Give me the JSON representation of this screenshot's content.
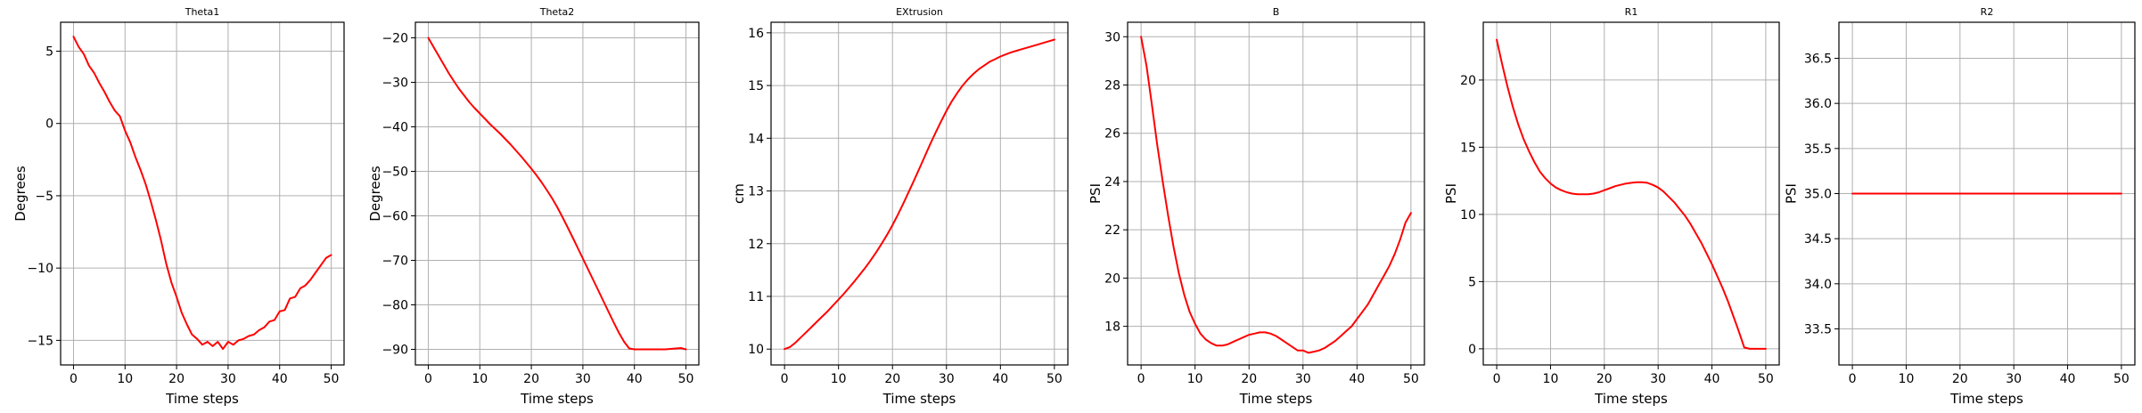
{
  "chart_data": [
    {
      "type": "line",
      "title": "Theta1",
      "xlabel": "Time steps",
      "ylabel": "Degrees",
      "xlim": [
        -2.5,
        52.5
      ],
      "ylim": [
        -16.7,
        7.0
      ],
      "xticks": [
        0,
        10,
        20,
        30,
        40,
        50
      ],
      "xtick_labels": [
        "0",
        "10",
        "20",
        "30",
        "40",
        "50"
      ],
      "yticks": [
        5,
        0,
        -5,
        -10,
        -15
      ],
      "ytick_labels": [
        "5",
        "0",
        "−5",
        "−10",
        "−15"
      ],
      "grid": true,
      "color": "#ff0000",
      "x": [
        0,
        1,
        2,
        3,
        4,
        5,
        6,
        7,
        8,
        9,
        10,
        11,
        12,
        13,
        14,
        15,
        16,
        17,
        18,
        19,
        20,
        21,
        22,
        23,
        24,
        25,
        26,
        27,
        28,
        29,
        30,
        31,
        32,
        33,
        34,
        35,
        36,
        37,
        38,
        39,
        40,
        41,
        42,
        43,
        44,
        45,
        46,
        47,
        48,
        49,
        50
      ],
      "y": [
        6.0,
        5.3,
        4.8,
        4.0,
        3.5,
        2.8,
        2.2,
        1.5,
        0.9,
        0.5,
        -0.5,
        -1.3,
        -2.3,
        -3.2,
        -4.2,
        -5.4,
        -6.7,
        -8.1,
        -9.7,
        -11.0,
        -12.0,
        -13.1,
        -13.9,
        -14.6,
        -14.9,
        -15.3,
        -15.1,
        -15.4,
        -15.1,
        -15.6,
        -15.1,
        -15.3,
        -15.0,
        -14.9,
        -14.7,
        -14.6,
        -14.3,
        -14.1,
        -13.7,
        -13.6,
        -13.0,
        -12.9,
        -12.1,
        -12.0,
        -11.4,
        -11.2,
        -10.8,
        -10.3,
        -9.8,
        -9.3,
        -9.1
      ]
    },
    {
      "type": "line",
      "title": "Theta2",
      "xlabel": "Time steps",
      "ylabel": "Degrees",
      "xlim": [
        -2.5,
        52.5
      ],
      "ylim": [
        -93.5,
        -16.5
      ],
      "xticks": [
        0,
        10,
        20,
        30,
        40,
        50
      ],
      "xtick_labels": [
        "0",
        "10",
        "20",
        "30",
        "40",
        "50"
      ],
      "yticks": [
        -20,
        -30,
        -40,
        -50,
        -60,
        -70,
        -80,
        -90
      ],
      "ytick_labels": [
        "−20",
        "−30",
        "−40",
        "−50",
        "−60",
        "−70",
        "−80",
        "−90"
      ],
      "grid": true,
      "color": "#ff0000",
      "x": [
        0,
        1,
        2,
        3,
        4,
        5,
        6,
        7,
        8,
        9,
        10,
        11,
        12,
        13,
        14,
        15,
        16,
        17,
        18,
        19,
        20,
        21,
        22,
        23,
        24,
        25,
        26,
        27,
        28,
        29,
        30,
        31,
        32,
        33,
        34,
        35,
        36,
        37,
        38,
        39,
        40,
        41,
        42,
        43,
        44,
        45,
        46,
        47,
        48,
        49,
        50
      ],
      "y": [
        -20.0,
        -22.0,
        -24.0,
        -26.0,
        -28.0,
        -29.8,
        -31.5,
        -33.0,
        -34.5,
        -35.8,
        -37.0,
        -38.2,
        -39.4,
        -40.5,
        -41.6,
        -42.8,
        -44.0,
        -45.3,
        -46.6,
        -48.0,
        -49.4,
        -50.9,
        -52.5,
        -54.2,
        -56.0,
        -58.0,
        -60.2,
        -62.5,
        -64.8,
        -67.2,
        -69.6,
        -72.0,
        -74.4,
        -76.8,
        -79.2,
        -81.6,
        -84.0,
        -86.3,
        -88.3,
        -89.8,
        -90.0,
        -90.0,
        -90.0,
        -90.0,
        -90.0,
        -90.0,
        -90.0,
        -89.9,
        -89.8,
        -89.7,
        -90.0
      ]
    },
    {
      "type": "line",
      "title": "EXtrusion",
      "xlabel": "Time steps",
      "ylabel": "cm",
      "xlim": [
        -2.5,
        52.5
      ],
      "ylim": [
        9.7,
        16.2
      ],
      "xticks": [
        0,
        10,
        20,
        30,
        40,
        50
      ],
      "xtick_labels": [
        "0",
        "10",
        "20",
        "30",
        "40",
        "50"
      ],
      "yticks": [
        10,
        11,
        12,
        13,
        14,
        15,
        16
      ],
      "ytick_labels": [
        "10",
        "11",
        "12",
        "13",
        "14",
        "15",
        "16"
      ],
      "grid": true,
      "color": "#ff0000",
      "x": [
        0,
        1,
        2,
        3,
        4,
        5,
        6,
        7,
        8,
        9,
        10,
        11,
        12,
        13,
        14,
        15,
        16,
        17,
        18,
        19,
        20,
        21,
        22,
        23,
        24,
        25,
        26,
        27,
        28,
        29,
        30,
        31,
        32,
        33,
        34,
        35,
        36,
        37,
        38,
        39,
        40,
        41,
        42,
        43,
        44,
        45,
        46,
        47,
        48,
        49,
        50
      ],
      "y": [
        10.0,
        10.04,
        10.12,
        10.22,
        10.32,
        10.42,
        10.52,
        10.62,
        10.72,
        10.83,
        10.94,
        11.05,
        11.17,
        11.29,
        11.42,
        11.55,
        11.69,
        11.84,
        12.0,
        12.17,
        12.35,
        12.55,
        12.76,
        12.98,
        13.2,
        13.43,
        13.66,
        13.89,
        14.11,
        14.32,
        14.52,
        14.7,
        14.86,
        15.0,
        15.12,
        15.22,
        15.31,
        15.38,
        15.45,
        15.5,
        15.55,
        15.59,
        15.63,
        15.66,
        15.69,
        15.72,
        15.75,
        15.78,
        15.81,
        15.84,
        15.87
      ]
    },
    {
      "type": "line",
      "title": "B",
      "xlabel": "Time steps",
      "ylabel": "PSI",
      "xlim": [
        -2.5,
        52.5
      ],
      "ylim": [
        16.4,
        30.6
      ],
      "xticks": [
        0,
        10,
        20,
        30,
        40,
        50
      ],
      "xtick_labels": [
        "0",
        "10",
        "20",
        "30",
        "40",
        "50"
      ],
      "yticks": [
        18,
        20,
        22,
        24,
        26,
        28,
        30
      ],
      "ytick_labels": [
        "18",
        "20",
        "22",
        "24",
        "26",
        "28",
        "30"
      ],
      "grid": true,
      "color": "#ff0000",
      "x": [
        0,
        1,
        2,
        3,
        4,
        5,
        6,
        7,
        8,
        9,
        10,
        11,
        12,
        13,
        14,
        15,
        16,
        17,
        18,
        19,
        20,
        21,
        22,
        23,
        24,
        25,
        26,
        27,
        28,
        29,
        30,
        31,
        32,
        33,
        34,
        35,
        36,
        37,
        38,
        39,
        40,
        41,
        42,
        43,
        44,
        45,
        46,
        47,
        48,
        49,
        50
      ],
      "y": [
        30.0,
        28.8,
        27.2,
        25.5,
        24.0,
        22.6,
        21.3,
        20.2,
        19.3,
        18.6,
        18.1,
        17.7,
        17.45,
        17.3,
        17.2,
        17.2,
        17.25,
        17.35,
        17.45,
        17.55,
        17.65,
        17.7,
        17.75,
        17.75,
        17.7,
        17.6,
        17.45,
        17.3,
        17.15,
        17.0,
        17.0,
        16.9,
        16.95,
        17.0,
        17.1,
        17.25,
        17.4,
        17.6,
        17.8,
        18.0,
        18.3,
        18.6,
        18.9,
        19.3,
        19.7,
        20.1,
        20.5,
        21.0,
        21.6,
        22.3,
        22.7
      ]
    },
    {
      "type": "line",
      "title": "R1",
      "xlabel": "Time steps",
      "ylabel": "PSI",
      "xlim": [
        -2.5,
        52.5
      ],
      "ylim": [
        -1.2,
        24.3
      ],
      "xticks": [
        0,
        10,
        20,
        30,
        40,
        50
      ],
      "xtick_labels": [
        "0",
        "10",
        "20",
        "30",
        "40",
        "50"
      ],
      "yticks": [
        0,
        5,
        10,
        15,
        20
      ],
      "ytick_labels": [
        "0",
        "5",
        "10",
        "15",
        "20"
      ],
      "grid": true,
      "color": "#ff0000",
      "x": [
        0,
        1,
        2,
        3,
        4,
        5,
        6,
        7,
        8,
        9,
        10,
        11,
        12,
        13,
        14,
        15,
        16,
        17,
        18,
        19,
        20,
        21,
        22,
        23,
        24,
        25,
        26,
        27,
        28,
        29,
        30,
        31,
        32,
        33,
        34,
        35,
        36,
        37,
        38,
        39,
        40,
        41,
        42,
        43,
        44,
        45,
        46,
        47,
        48,
        49,
        50
      ],
      "y": [
        23.0,
        21.2,
        19.5,
        18.0,
        16.7,
        15.6,
        14.7,
        13.9,
        13.2,
        12.7,
        12.3,
        12.0,
        11.8,
        11.65,
        11.55,
        11.5,
        11.5,
        11.5,
        11.55,
        11.65,
        11.8,
        11.95,
        12.1,
        12.2,
        12.3,
        12.35,
        12.4,
        12.4,
        12.35,
        12.2,
        12.0,
        11.7,
        11.3,
        10.9,
        10.4,
        9.9,
        9.3,
        8.6,
        7.9,
        7.1,
        6.3,
        5.4,
        4.5,
        3.5,
        2.4,
        1.3,
        0.1,
        0.0,
        0.0,
        0.0,
        0.0
      ]
    },
    {
      "type": "line",
      "title": "R2",
      "xlabel": "Time steps",
      "ylabel": "PSI",
      "xlim": [
        -2.5,
        52.5
      ],
      "ylim": [
        33.1,
        36.9
      ],
      "xticks": [
        0,
        10,
        20,
        30,
        40,
        50
      ],
      "xtick_labels": [
        "0",
        "10",
        "20",
        "30",
        "40",
        "50"
      ],
      "yticks": [
        33.5,
        34.0,
        34.5,
        35.0,
        35.5,
        36.0,
        36.5
      ],
      "ytick_labels": [
        "33.5",
        "34.0",
        "34.5",
        "35.0",
        "35.5",
        "36.0",
        "36.5"
      ],
      "grid": true,
      "color": "#ff0000",
      "x": [
        0,
        50
      ],
      "y": [
        35.0,
        35.0
      ]
    }
  ]
}
